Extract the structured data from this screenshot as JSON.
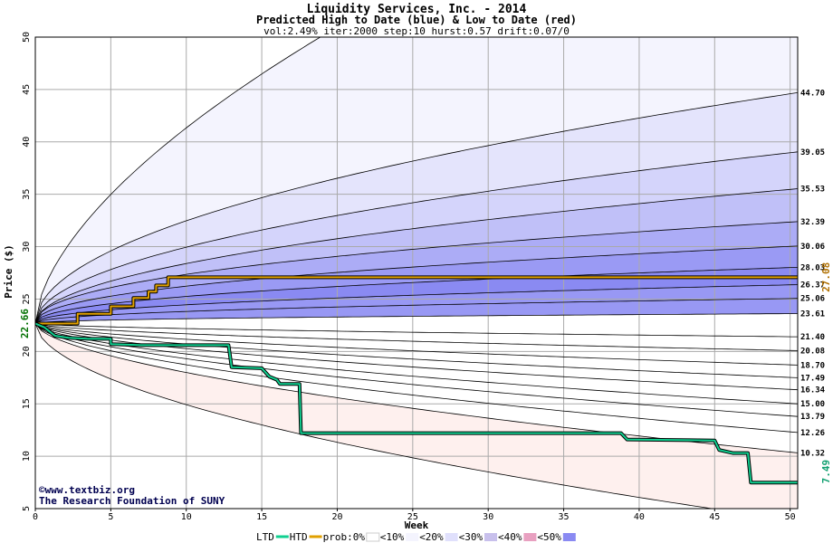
{
  "chart_data": {
    "type": "area",
    "title": "Liquidity Services, Inc. - 2014",
    "subtitle": "Predicted High to Date (blue) &  Low to Date (red)",
    "params": "vol:2.49% iter:2000 step:10 hurst:0.57 drift:0.07/0",
    "xlabel": "Week",
    "ylabel": "Price ($)",
    "xlim": [
      0,
      50.5
    ],
    "ylim": [
      5,
      50
    ],
    "x_ticks": [
      0,
      5,
      10,
      15,
      20,
      25,
      30,
      35,
      40,
      45,
      50
    ],
    "y_ticks": [
      5,
      10,
      15,
      20,
      25,
      30,
      35,
      40,
      45,
      50
    ],
    "grid": true,
    "start_price": 22.66,
    "start_price_label": "22.66",
    "current_high": 27.08,
    "current_high_label": "27.08",
    "current_low": 7.49,
    "current_low_label": "7.49",
    "high_bands": [
      {
        "label": "44.70",
        "end": 44.7
      },
      {
        "label": "39.05",
        "end": 39.05
      },
      {
        "label": "35.53",
        "end": 35.53
      },
      {
        "label": "32.39",
        "end": 32.39
      },
      {
        "label": "30.06",
        "end": 30.06
      },
      {
        "label": "28.03",
        "end": 28.03
      },
      {
        "label": "26.37",
        "end": 26.37
      },
      {
        "label": "25.06",
        "end": 25.06
      },
      {
        "label": "23.61",
        "end": 23.61
      }
    ],
    "low_bands": [
      {
        "label": "21.40",
        "end": 21.4
      },
      {
        "label": "20.08",
        "end": 20.08
      },
      {
        "label": "18.70",
        "end": 18.7
      },
      {
        "label": "17.49",
        "end": 17.49
      },
      {
        "label": "16.34",
        "end": 16.34
      },
      {
        "label": "15.00",
        "end": 15.0
      },
      {
        "label": "13.79",
        "end": 13.79
      },
      {
        "label": "12.26",
        "end": 12.26
      },
      {
        "label": "10.32",
        "end": 10.32
      }
    ],
    "series": [
      {
        "name": "HTD",
        "color": "#e0a000",
        "points": [
          [
            0,
            22.66
          ],
          [
            2.8,
            22.66
          ],
          [
            2.8,
            23.6
          ],
          [
            5,
            23.6
          ],
          [
            5,
            24.3
          ],
          [
            6.5,
            24.3
          ],
          [
            6.5,
            25.1
          ],
          [
            7.5,
            25.1
          ],
          [
            7.5,
            25.7
          ],
          [
            8,
            25.7
          ],
          [
            8,
            26.3
          ],
          [
            8.8,
            26.3
          ],
          [
            8.8,
            27.08
          ],
          [
            50.5,
            27.08
          ]
        ]
      },
      {
        "name": "LTD",
        "color": "#10d090",
        "points": [
          [
            0,
            22.66
          ],
          [
            0.6,
            22.3
          ],
          [
            1.3,
            21.5
          ],
          [
            2.2,
            21.3
          ],
          [
            3.5,
            21.2
          ],
          [
            5,
            21.2
          ],
          [
            5,
            20.7
          ],
          [
            7,
            20.6
          ],
          [
            12.8,
            20.6
          ],
          [
            13,
            18.5
          ],
          [
            15,
            18.4
          ],
          [
            15.5,
            17.6
          ],
          [
            16,
            17.3
          ],
          [
            16.2,
            16.9
          ],
          [
            17.5,
            16.9
          ],
          [
            17.6,
            12.2
          ],
          [
            38.8,
            12.2
          ],
          [
            39.2,
            11.6
          ],
          [
            45,
            11.5
          ],
          [
            45.3,
            10.6
          ],
          [
            46.2,
            10.3
          ],
          [
            47.2,
            10.3
          ],
          [
            47.4,
            7.49
          ],
          [
            50.5,
            7.49
          ]
        ]
      }
    ],
    "legend": {
      "items": [
        "LTD",
        "HTD",
        "prob:0%",
        "<10%",
        "<20%",
        "<30%",
        "<40%",
        "<50%"
      ],
      "placement": "bottom"
    },
    "colors": {
      "high_bands": [
        "#f4f4fe",
        "#e4e4fc",
        "#d4d4fb",
        "#c0c0f8",
        "#acacf6",
        "#9a9af4",
        "#8a8af2",
        "#9898f4"
      ],
      "low_bands": [
        "#fef0ee",
        "#fde0dc",
        "#fbcfc9",
        "#f9bdb6",
        "#f7aaa2",
        "#f5968d",
        "#f78880",
        "#f9a8a0"
      ],
      "legend_swatches": [
        "#ffffff",
        "#f4f4fe",
        "#e0e0fc",
        "#c8c0ec",
        "#e8a0c0",
        "#8a8af2"
      ]
    }
  },
  "watermark": {
    "line1": "©www.textbiz.org",
    "line2": "The Research Foundation of SUNY"
  }
}
